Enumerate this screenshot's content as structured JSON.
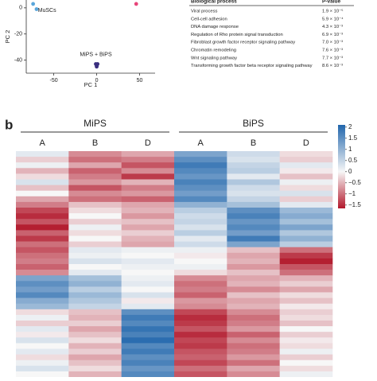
{
  "chart_data": [
    {
      "type": "scatter",
      "xlabel": "PC 1",
      "ylabel": "PC 2",
      "xlim": [
        -82,
        68
      ],
      "ylim": [
        -50,
        6
      ],
      "xticks": [
        -50,
        0,
        50
      ],
      "yticks": [
        0,
        -20,
        -40
      ],
      "series": [
        {
          "name": "MuSCs",
          "color": "#5aa6db",
          "x": [
            -74,
            -70
          ],
          "y": [
            3,
            -1
          ]
        },
        {
          "color": "#e8457a",
          "x": [
            46
          ],
          "y": [
            3
          ]
        },
        {
          "name": "MiPS + BiPS",
          "color": "#3a2f7f",
          "x": [
            -1,
            0,
            1,
            0
          ],
          "y": [
            -43,
            -44,
            -43,
            -45
          ]
        }
      ]
    },
    {
      "type": "heatmap",
      "groups": [
        "MiPS",
        "BiPS"
      ],
      "group_color": "#2e3192",
      "columns": [
        "A",
        "B",
        "D",
        "A",
        "B",
        "D"
      ],
      "clim": [
        -1.65,
        2.1
      ],
      "colors": [
        "#b2182b",
        "#f7f7f7",
        "#2166ac"
      ],
      "cticks": [
        2,
        1.5,
        1,
        0.5,
        0,
        {
          "value": -0.5,
          "label": "−0.5"
        },
        {
          "value": -1,
          "label": "−1"
        },
        {
          "value": -1.5,
          "label": "−1.5"
        }
      ],
      "values": [
        [
          0.2,
          -0.8,
          -0.6,
          1.2,
          0.4,
          -0.2
        ],
        [
          -0.3,
          -1.0,
          -0.9,
          1.5,
          0.3,
          -0.3
        ],
        [
          0.1,
          -0.6,
          -1.2,
          1.8,
          0.5,
          0.2
        ],
        [
          -0.5,
          -1.1,
          -0.8,
          1.6,
          0.6,
          -0.1
        ],
        [
          -0.2,
          -0.9,
          -1.4,
          1.4,
          0.2,
          -0.4
        ],
        [
          0.3,
          -0.7,
          -0.5,
          1.7,
          0.7,
          0.1
        ],
        [
          -0.4,
          -1.2,
          -0.9,
          1.5,
          0.4,
          -0.2
        ],
        [
          0.0,
          -0.8,
          -0.7,
          1.3,
          0.3,
          0.3
        ],
        [
          -0.6,
          -1.0,
          -1.1,
          1.6,
          0.5,
          -0.3
        ],
        [
          -0.9,
          -0.4,
          -0.6,
          1.0,
          0.8,
          0.2
        ],
        [
          -1.3,
          -0.2,
          -0.5,
          0.6,
          1.5,
          0.9
        ],
        [
          -1.5,
          0.0,
          -0.7,
          0.4,
          1.7,
          1.1
        ],
        [
          -1.2,
          -0.3,
          -0.4,
          0.5,
          1.4,
          0.8
        ],
        [
          -1.6,
          0.1,
          -0.6,
          0.3,
          1.6,
          1.2
        ],
        [
          -1.1,
          -0.2,
          -0.3,
          0.6,
          1.3,
          0.7
        ],
        [
          -1.4,
          0.0,
          -0.5,
          0.2,
          1.8,
          1.0
        ],
        [
          -1.0,
          -0.3,
          -0.6,
          0.4,
          1.2,
          0.6
        ],
        [
          -1.2,
          0.2,
          0.1,
          0.1,
          -0.4,
          -1.0
        ],
        [
          -1.0,
          0.1,
          0.0,
          -0.1,
          -0.6,
          -1.4
        ],
        [
          -0.9,
          0.3,
          0.2,
          0.0,
          -0.5,
          -1.6
        ],
        [
          -1.1,
          0.0,
          0.1,
          0.1,
          -0.7,
          -1.2
        ],
        [
          -0.8,
          0.2,
          0.0,
          -0.2,
          -0.4,
          -1.0
        ],
        [
          1.2,
          0.8,
          0.1,
          -0.8,
          -0.6,
          -0.5
        ],
        [
          1.5,
          1.0,
          0.2,
          -1.0,
          -0.5,
          -0.3
        ],
        [
          1.3,
          0.6,
          0.0,
          -0.9,
          -0.8,
          -0.6
        ],
        [
          1.6,
          0.9,
          0.3,
          -1.1,
          -0.4,
          -0.2
        ],
        [
          1.1,
          0.7,
          -0.1,
          -0.7,
          -0.6,
          -0.4
        ],
        [
          0.9,
          0.5,
          0.2,
          -0.8,
          -0.5,
          -0.1
        ],
        [
          -0.2,
          -0.4,
          1.5,
          -1.3,
          -0.8,
          -0.3
        ],
        [
          0.1,
          -0.5,
          1.8,
          -1.5,
          -1.0,
          -0.2
        ],
        [
          -0.3,
          -0.3,
          1.6,
          -1.4,
          -0.9,
          -0.4
        ],
        [
          0.2,
          -0.6,
          1.9,
          -1.2,
          -0.7,
          0.0
        ],
        [
          -0.1,
          -0.4,
          1.7,
          -1.5,
          -1.1,
          -0.3
        ],
        [
          0.3,
          -0.2,
          2.0,
          -1.3,
          -0.8,
          -0.1
        ],
        [
          0.0,
          -0.5,
          1.6,
          -1.4,
          -1.0,
          -0.2
        ],
        [
          0.2,
          -0.3,
          1.8,
          -1.2,
          -0.9,
          0.1
        ],
        [
          -0.2,
          -0.6,
          1.5,
          -1.1,
          -0.7,
          -0.3
        ],
        [
          0.1,
          -0.4,
          1.7,
          -1.3,
          -1.0,
          0.0
        ],
        [
          0.3,
          -0.2,
          1.4,
          -1.0,
          -0.6,
          -0.2
        ],
        [
          0.0,
          -0.5,
          1.6,
          -1.2,
          -0.8,
          0.1
        ]
      ]
    }
  ],
  "table": {
    "header": [
      "Biological process",
      "P-value"
    ],
    "rows": [
      [
        "Viral process",
        "1.9 × 10⁻⁵"
      ],
      [
        "Cell-cell adhesion",
        "5.9 × 10⁻⁴"
      ],
      [
        "DNA damage response",
        "4.3 × 10⁻³"
      ],
      [
        "Regulation of Rho protein signal transduction",
        "6.9 × 10⁻³"
      ],
      [
        "Fibroblast growth factor receptor signaling pathway",
        "7.0 × 10⁻³"
      ],
      [
        "Chromatin remodeling",
        "7.6 × 10⁻³"
      ],
      [
        "Wnt signaling pathway",
        "7.7 × 10⁻³"
      ],
      [
        "Transforming growth factor beta receptor signaling pathway",
        "8.6 × 10⁻³"
      ]
    ]
  },
  "panel_label": "b"
}
